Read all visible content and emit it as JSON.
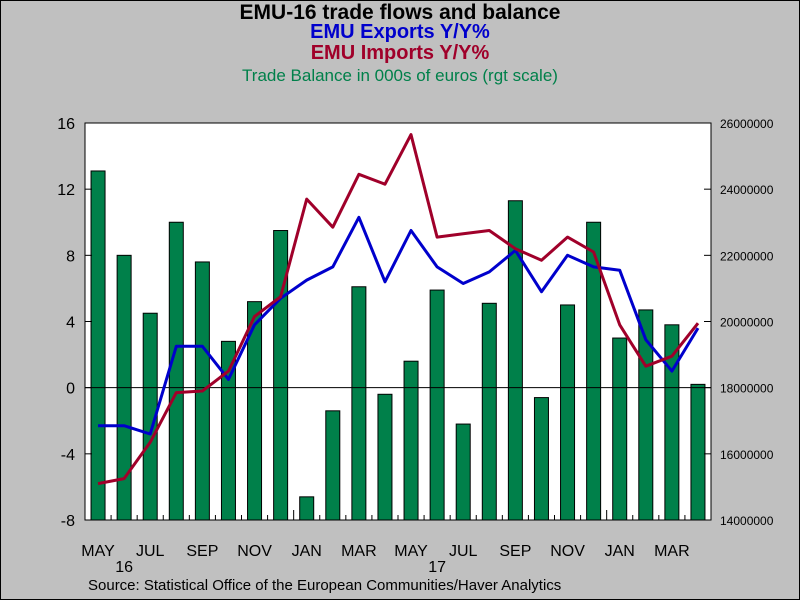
{
  "titles": {
    "main": "EMU-16 trade flows and balance",
    "exports": "EMU Exports Y/Y%",
    "imports": "EMU Imports Y/Y%",
    "balance": "Trade Balance in 000s of euros (rgt scale)"
  },
  "source": "Source:  Statistical Office of the European Communities/Haver Analytics",
  "colors": {
    "exports": "#0000cc",
    "imports": "#a0002a",
    "balance": "#00804a",
    "plot_bg": "#ffffff",
    "page_bg": "#c0c0c0"
  },
  "chart_data": {
    "type": "bar",
    "x": [
      "May 2016",
      "Jun 2016",
      "Jul 2016",
      "Aug 2016",
      "Sep 2016",
      "Oct 2016",
      "Nov 2016",
      "Dec 2016",
      "Jan 2017",
      "Feb 2017",
      "Mar 2017",
      "Apr 2017",
      "May 2017",
      "Jun 2017",
      "Jul 2017",
      "Aug 2017",
      "Sep 2017",
      "Oct 2017",
      "Nov 2017",
      "Dec 2017",
      "Jan 2018",
      "Feb 2018",
      "Mar 2018",
      "Apr 2018"
    ],
    "x_tick_labels": [
      "MAY",
      "JUL",
      "SEP",
      "NOV",
      "JAN",
      "MAR",
      "MAY",
      "JUL",
      "SEP",
      "NOV",
      "JAN",
      "MAR"
    ],
    "year_labels": [
      "16",
      "17"
    ],
    "y_left_ticks": [
      "16",
      "12",
      "8",
      "4",
      "0",
      "-4",
      "-8"
    ],
    "y_right_ticks": [
      "26000000",
      "24000000",
      "22000000",
      "20000000",
      "18000000",
      "16000000",
      "14000000"
    ],
    "y_left_lim": [
      -8,
      16
    ],
    "y_right_lim": [
      14000000,
      26000000
    ],
    "series": [
      {
        "name": "EMU Exports Y/Y%",
        "type": "line",
        "axis": "left",
        "values": [
          -2.3,
          -2.3,
          -2.8,
          2.5,
          2.5,
          0.5,
          3.8,
          5.4,
          6.5,
          7.3,
          10.3,
          6.4,
          9.5,
          7.3,
          6.3,
          7.0,
          8.3,
          5.8,
          8.0,
          7.3,
          7.1,
          2.9,
          1.0,
          3.6
        ]
      },
      {
        "name": "EMU Imports Y/Y%",
        "type": "line",
        "axis": "left",
        "values": [
          -5.8,
          -5.5,
          -3.3,
          -0.3,
          -0.2,
          1.0,
          4.3,
          5.5,
          11.4,
          9.7,
          12.9,
          12.3,
          15.3,
          9.1,
          9.3,
          9.5,
          8.4,
          7.7,
          9.1,
          8.2,
          3.8,
          1.3,
          1.9,
          3.9
        ]
      },
      {
        "name": "Trade Balance in 000s of euros (rgt scale)",
        "type": "bar",
        "axis": "right",
        "values": [
          24550000,
          22000000,
          20250000,
          23000000,
          21800000,
          19400000,
          20600000,
          22750000,
          14700000,
          17300000,
          21050000,
          17800000,
          18800000,
          20950000,
          16900000,
          20550000,
          23650000,
          17700000,
          20500000,
          23000000,
          19500000,
          20350000,
          19900000,
          18100000
        ]
      }
    ],
    "grid": false,
    "reference_line": 0
  }
}
